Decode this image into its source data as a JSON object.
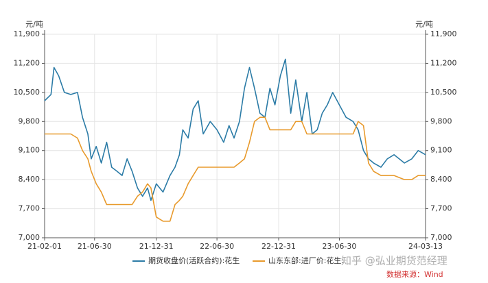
{
  "chart_data": {
    "type": "line",
    "y_unit": "元/吨",
    "y2_unit": "元/吨",
    "x": [
      "21-02-01",
      "21-02-20",
      "21-03-01",
      "21-03-15",
      "21-04-01",
      "21-04-20",
      "21-05-10",
      "21-05-25",
      "21-06-10",
      "21-06-20",
      "21-07-05",
      "21-07-20",
      "21-08-05",
      "21-08-20",
      "21-09-05",
      "21-09-20",
      "21-10-05",
      "21-10-20",
      "21-11-05",
      "21-11-20",
      "21-12-05",
      "21-12-15",
      "21-12-31",
      "22-01-20",
      "22-02-10",
      "22-02-25",
      "22-03-10",
      "22-03-20",
      "22-04-05",
      "22-04-20",
      "22-05-05",
      "22-05-20",
      "22-06-10",
      "22-06-30",
      "22-07-20",
      "22-08-05",
      "22-08-20",
      "22-09-05",
      "22-09-20",
      "22-10-05",
      "22-10-20",
      "22-11-05",
      "22-11-20",
      "22-12-05",
      "22-12-20",
      "23-01-05",
      "23-01-20",
      "23-02-05",
      "23-02-20",
      "23-03-10",
      "23-03-25",
      "23-04-10",
      "23-04-25",
      "23-05-10",
      "23-05-25",
      "23-06-10",
      "23-06-30",
      "23-07-20",
      "23-08-10",
      "23-08-25",
      "23-09-10",
      "23-09-25",
      "23-10-10",
      "23-11-01",
      "23-11-20",
      "23-12-10",
      "24-01-10",
      "24-02-01",
      "24-02-20",
      "24-03-13"
    ],
    "xlim": [
      "21-02-01",
      "24-03-13"
    ],
    "xticks": [
      "21-02-01",
      "21-06-30",
      "21-12-31",
      "22-06-30",
      "22-12-31",
      "23-06-30",
      "24-03-13"
    ],
    "series": [
      {
        "name": "期货收盘价(活跃合约):花生",
        "color": "#2b7ba6",
        "axis": "y",
        "values": [
          10300,
          10450,
          11100,
          10900,
          10500,
          10450,
          10500,
          9900,
          9500,
          8900,
          9200,
          8800,
          9300,
          8700,
          8600,
          8500,
          8900,
          8600,
          8200,
          8000,
          8200,
          7900,
          8300,
          8100,
          8500,
          8700,
          9000,
          9600,
          9400,
          10100,
          10300,
          9500,
          9800,
          9600,
          9300,
          9700,
          9400,
          9800,
          10600,
          11100,
          10600,
          10000,
          9900,
          10600,
          10200,
          10900,
          11300,
          10000,
          10800,
          9800,
          10500,
          9500,
          9600,
          10000,
          10200,
          10500,
          10200,
          9900,
          9800,
          9600,
          9100,
          8900,
          8800,
          8700,
          8900,
          9000,
          8800,
          8900,
          9100,
          9000
        ]
      },
      {
        "name": "山东东部:进厂价:花生:",
        "color": "#e89a2c",
        "axis": "y2",
        "values": [
          9500,
          9500,
          9500,
          9500,
          9500,
          9500,
          9400,
          9100,
          8900,
          8600,
          8300,
          8100,
          7800,
          7800,
          7800,
          7800,
          7800,
          7800,
          8000,
          8100,
          8300,
          8200,
          7500,
          7400,
          7400,
          7800,
          7900,
          8000,
          8300,
          8500,
          8700,
          8700,
          8700,
          8700,
          8700,
          8700,
          8700,
          8800,
          8900,
          9300,
          9800,
          9900,
          9900,
          9600,
          9600,
          9600,
          9600,
          9600,
          9800,
          9800,
          9500,
          9500,
          9500,
          9500,
          9500,
          9500,
          9500,
          9500,
          9500,
          9800,
          9700,
          8800,
          8600,
          8500,
          8500,
          8500,
          8400,
          8400,
          8500,
          8500
        ]
      }
    ],
    "ylim": [
      7000,
      11900
    ],
    "yticks": [
      {
        "value": 7000,
        "label": "7,000"
      },
      {
        "value": 7700,
        "label": "7,700"
      },
      {
        "value": 8400,
        "label": "8,400"
      },
      {
        "value": 9100,
        "label": "9,100"
      },
      {
        "value": 9800,
        "label": "9,800"
      },
      {
        "value": 10500,
        "label": "10,500"
      },
      {
        "value": 11200,
        "label": "11,200"
      },
      {
        "value": 11900,
        "label": "11,900"
      }
    ],
    "y2lim": [
      7000,
      11900
    ],
    "y2ticks": [
      {
        "value": 7000,
        "label": "7,000"
      },
      {
        "value": 7700,
        "label": "7,700"
      },
      {
        "value": 8400,
        "label": "8,400"
      },
      {
        "value": 9100,
        "label": "9,100"
      },
      {
        "value": 9800,
        "label": "9,800"
      },
      {
        "value": 10500,
        "label": "10,500"
      },
      {
        "value": 11200,
        "label": "11,200"
      },
      {
        "value": 11900,
        "label": "11,900"
      }
    ],
    "grid": true,
    "legend": "bottom",
    "watermark": "知乎 @弘业期货范经理",
    "source": "数据来源：Wind"
  }
}
